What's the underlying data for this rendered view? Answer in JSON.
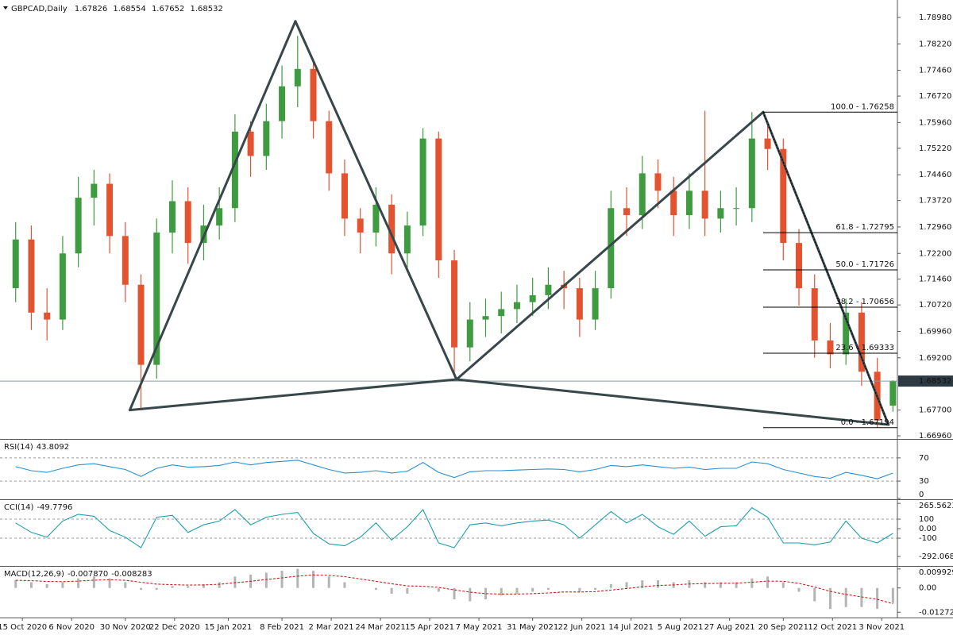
{
  "chart_data": {
    "type": "candlestick",
    "title": "GBPCAD,Daily",
    "x": [
      "12 Oct 2020",
      "19 Oct 2020",
      "26 Oct 2020",
      "2 Nov 2020",
      "9 Nov 2020",
      "16 Nov 2020",
      "23 Nov 2020",
      "30 Nov 2020",
      "7 Dec 2020",
      "14 Dec 2020",
      "21 Dec 2020",
      "28 Dec 2020",
      "4 Jan 2021",
      "11 Jan 2021",
      "18 Jan 2021",
      "25 Jan 2021",
      "1 Feb 2021",
      "8 Feb 2021",
      "15 Feb 2021",
      "22 Feb 2021",
      "1 Mar 2021",
      "8 Mar 2021",
      "15 Mar 2021",
      "22 Mar 2021",
      "29 Mar 2021",
      "5 Apr 2021",
      "12 Apr 2021",
      "19 Apr 2021",
      "26 Apr 2021",
      "3 May 2021",
      "10 May 2021",
      "17 May 2021",
      "24 May 2021",
      "31 May 2021",
      "7 Jun 2021",
      "14 Jun 2021",
      "21 Jun 2021",
      "28 Jun 2021",
      "5 Jul 2021",
      "12 Jul 2021",
      "19 Jul 2021",
      "26 Jul 2021",
      "2 Aug 2021",
      "9 Aug 2021",
      "16 Aug 2021",
      "23 Aug 2021",
      "30 Aug 2021",
      "6 Sep 2021",
      "13 Sep 2021",
      "20 Sep 2021",
      "27 Sep 2021",
      "4 Oct 2021",
      "11 Oct 2021",
      "18 Oct 2021",
      "25 Oct 2021",
      "1 Nov 2021",
      "8 Nov 2021"
    ],
    "open": [
      1.712,
      1.726,
      1.705,
      1.703,
      1.722,
      1.738,
      1.742,
      1.727,
      1.713,
      1.69,
      1.728,
      1.737,
      1.725,
      1.73,
      1.735,
      1.757,
      1.75,
      1.76,
      1.77,
      1.775,
      1.76,
      1.745,
      1.732,
      1.728,
      1.736,
      1.722,
      1.73,
      1.755,
      1.72,
      1.695,
      1.703,
      1.704,
      1.706,
      1.708,
      1.71,
      1.713,
      1.712,
      1.703,
      1.712,
      1.735,
      1.733,
      1.745,
      1.74,
      1.733,
      1.74,
      1.732,
      1.735,
      1.735,
      1.755,
      1.752,
      1.725,
      1.712,
      1.697,
      1.693,
      1.705,
      1.688,
      1.67826
    ],
    "high": [
      1.731,
      1.73,
      1.712,
      1.727,
      1.744,
      1.746,
      1.745,
      1.731,
      1.716,
      1.732,
      1.743,
      1.741,
      1.736,
      1.741,
      1.762,
      1.76,
      1.765,
      1.776,
      1.7845,
      1.778,
      1.763,
      1.749,
      1.735,
      1.741,
      1.739,
      1.734,
      1.758,
      1.757,
      1.723,
      1.708,
      1.709,
      1.711,
      1.713,
      1.715,
      1.718,
      1.717,
      1.715,
      1.717,
      1.74,
      1.741,
      1.75,
      1.749,
      1.744,
      1.745,
      1.763,
      1.74,
      1.741,
      1.7626,
      1.759,
      1.755,
      1.729,
      1.716,
      1.702,
      1.709,
      1.708,
      1.692,
      1.68554
    ],
    "low": [
      1.708,
      1.7,
      1.697,
      1.7,
      1.718,
      1.73,
      1.722,
      1.708,
      1.677,
      1.686,
      1.722,
      1.719,
      1.72,
      1.726,
      1.731,
      1.744,
      1.746,
      1.755,
      1.764,
      1.755,
      1.74,
      1.727,
      1.722,
      1.724,
      1.716,
      1.718,
      1.727,
      1.715,
      1.6866,
      1.691,
      1.698,
      1.699,
      1.702,
      1.704,
      1.706,
      1.706,
      1.698,
      1.7,
      1.709,
      1.727,
      1.729,
      1.735,
      1.727,
      1.729,
      1.727,
      1.728,
      1.73,
      1.731,
      1.746,
      1.72,
      1.707,
      1.692,
      1.689,
      1.69,
      1.684,
      1.6719,
      1.67652
    ],
    "close": [
      1.726,
      1.705,
      1.703,
      1.722,
      1.738,
      1.742,
      1.727,
      1.713,
      1.69,
      1.728,
      1.737,
      1.725,
      1.73,
      1.735,
      1.757,
      1.75,
      1.76,
      1.77,
      1.775,
      1.76,
      1.745,
      1.732,
      1.728,
      1.736,
      1.722,
      1.73,
      1.755,
      1.72,
      1.695,
      1.703,
      1.704,
      1.706,
      1.708,
      1.71,
      1.713,
      1.712,
      1.703,
      1.712,
      1.735,
      1.733,
      1.745,
      1.74,
      1.733,
      1.74,
      1.732,
      1.735,
      1.735,
      1.755,
      1.752,
      1.725,
      1.712,
      1.697,
      1.693,
      1.705,
      1.688,
      1.674,
      1.68532
    ],
    "up_color": "#3f9b3f",
    "down_color": "#e4532f",
    "xlim": [
      "5 Oct 2020",
      "10 Nov 2021"
    ],
    "xticks": [
      "15 Oct 2020",
      "6 Nov 2020",
      "30 Nov 2020",
      "22 Dec 2020",
      "15 Jan 2021",
      "8 Feb 2021",
      "2 Mar 2021",
      "24 Mar 2021",
      "15 Apr 2021",
      "7 May 2021",
      "31 May 2021",
      "22 Jun 2021",
      "14 Jul 2021",
      "5 Aug 2021",
      "27 Aug 2021",
      "20 Sep 2021",
      "12 Oct 2021",
      "3 Nov 2021"
    ],
    "ylim": [
      1.6687,
      1.7948
    ],
    "yticks": [
      {
        "value": 1.7898,
        "label": "1.78980"
      },
      {
        "value": 1.7822,
        "label": "1.78220"
      },
      {
        "value": 1.7746,
        "label": "1.77460"
      },
      {
        "value": 1.7672,
        "label": "1.76720"
      },
      {
        "value": 1.7596,
        "label": "1.75960"
      },
      {
        "value": 1.7522,
        "label": "1.75220"
      },
      {
        "value": 1.7446,
        "label": "1.74460"
      },
      {
        "value": 1.7372,
        "label": "1.73720"
      },
      {
        "value": 1.7296,
        "label": "1.72960"
      },
      {
        "value": 1.722,
        "label": "1.72200"
      },
      {
        "value": 1.7146,
        "label": "1.71460"
      },
      {
        "value": 1.7072,
        "label": "1.70720"
      },
      {
        "value": 1.6996,
        "label": "1.69960"
      },
      {
        "value": 1.692,
        "label": "1.69200"
      },
      {
        "value": 1.677,
        "label": "1.67700"
      },
      {
        "value": 1.6696,
        "label": "1.66960"
      }
    ],
    "fibonacci": [
      {
        "value": 1.76258,
        "label": "100.0 - 1.76258"
      },
      {
        "value": 1.72795,
        "label": "61.8 - 1.72795"
      },
      {
        "value": 1.71726,
        "label": "50.0 - 1.71726"
      },
      {
        "value": 1.70656,
        "label": "38.2 - 1.70656"
      },
      {
        "value": 1.69333,
        "label": "23.6 - 1.69333"
      },
      {
        "value": 1.67194,
        "label": "0.0 - 1.67194"
      }
    ],
    "pattern": {
      "x": [
        "2 Dec 2020",
        "14 Feb 2021",
        "27 Apr 2021",
        "11 Sep 2021",
        "6 Nov 2021"
      ],
      "y": [
        1.677,
        1.7887,
        1.6858,
        1.7626,
        1.6728
      ],
      "color": "#37474a"
    },
    "indicators": [
      {
        "type": "line",
        "name": "RSI(14)",
        "color": "#2a8fd0",
        "ylim": [
          0,
          100
        ],
        "yticks": [
          70,
          30,
          0
        ],
        "levels": [
          70,
          30
        ],
        "values": [
          55,
          48,
          45,
          52,
          58,
          60,
          55,
          50,
          38,
          52,
          58,
          54,
          55,
          57,
          63,
          58,
          62,
          64,
          66,
          58,
          50,
          44,
          45,
          48,
          44,
          47,
          62,
          45,
          36,
          46,
          48,
          48,
          49,
          50,
          51,
          50,
          46,
          50,
          57,
          55,
          58,
          55,
          52,
          54,
          50,
          52,
          52,
          63,
          60,
          50,
          44,
          38,
          35,
          45,
          40,
          34,
          43.8092
        ]
      },
      {
        "type": "line",
        "name": "CCI(14)",
        "color": "#1d9fae",
        "ylim": [
          -383,
          292
        ],
        "yticks": [
          265.5623,
          100,
          {
            "value": 0,
            "label": "0.00"
          },
          -100,
          -292.0683
        ],
        "levels": [
          100,
          -100
        ],
        "values": [
          60,
          -40,
          -90,
          80,
          150,
          130,
          -20,
          -90,
          -200,
          120,
          140,
          -40,
          40,
          80,
          200,
          40,
          120,
          150,
          170,
          -50,
          -160,
          -180,
          -90,
          60,
          -120,
          20,
          200,
          -150,
          -200,
          40,
          60,
          30,
          60,
          80,
          90,
          40,
          -100,
          40,
          180,
          60,
          150,
          20,
          -60,
          80,
          -80,
          20,
          30,
          220,
          120,
          -150,
          -150,
          -170,
          -140,
          80,
          -100,
          -150,
          -49.7796
        ]
      },
      {
        "type": "macd",
        "name": "MACD(12,26,9)",
        "ylim": [
          -0.0151,
          0.0107
        ],
        "yticks": [
          0.009929,
          {
            "value": 0,
            "label": "0.00"
          },
          -0.012726
        ],
        "levels": [],
        "main": {
          "color": "#b4b4b4",
          "values": [
            0.004,
            0.003,
            0.002,
            0.003,
            0.005,
            0.006,
            0.005,
            0.003,
            -0.001,
            -0.001,
            0.001,
            0.001,
            0.002,
            0.003,
            0.006,
            0.007,
            0.008,
            0.009,
            0.01,
            0.009,
            0.006,
            0.003,
            0.0,
            -0.001,
            -0.003,
            -0.003,
            0.0,
            -0.002,
            -0.006,
            -0.007,
            -0.006,
            -0.004,
            -0.003,
            -0.002,
            -0.001,
            0.0,
            -0.002,
            -0.001,
            0.002,
            0.003,
            0.004,
            0.004,
            0.003,
            0.004,
            0.003,
            0.003,
            0.003,
            0.005,
            0.006,
            0.003,
            -0.002,
            -0.007,
            -0.011,
            -0.01,
            -0.01,
            -0.011,
            -0.00787
          ],
          "value_labels": [
            null,
            null,
            null,
            null,
            null,
            null,
            null,
            null,
            null,
            null,
            null,
            null,
            null,
            null,
            null,
            null,
            null,
            null,
            null,
            null,
            null,
            null,
            null,
            null,
            null,
            null,
            null,
            null,
            null,
            null,
            null,
            null,
            null,
            null,
            null,
            null,
            null,
            null,
            null,
            null,
            null,
            null,
            null,
            null,
            null,
            null,
            null,
            null,
            null,
            null,
            null,
            null,
            null,
            null,
            null,
            null,
            "-0.007870"
          ]
        },
        "signal": {
          "color": "#d01a1a",
          "values": [
            0.004,
            0.0038,
            0.0034,
            0.0033,
            0.0036,
            0.0041,
            0.0043,
            0.004,
            0.003,
            0.002,
            0.0017,
            0.0015,
            0.0016,
            0.0019,
            0.0027,
            0.0035,
            0.0044,
            0.0053,
            0.0062,
            0.0068,
            0.0066,
            0.0059,
            0.0047,
            0.0035,
            0.0022,
            0.0011,
            0.0009,
            0.0003,
            -0.001,
            -0.0022,
            -0.003,
            -0.0032,
            -0.0032,
            -0.003,
            -0.0026,
            -0.0021,
            -0.0021,
            -0.0019,
            -0.0011,
            -0.0003,
            0.0006,
            0.0013,
            0.0016,
            0.0021,
            0.0023,
            0.0024,
            0.0025,
            0.003,
            0.0036,
            0.0035,
            0.0024,
            0.0005,
            -0.0018,
            -0.0034,
            -0.0047,
            -0.006,
            -0.008283
          ]
        }
      }
    ]
  }
}
